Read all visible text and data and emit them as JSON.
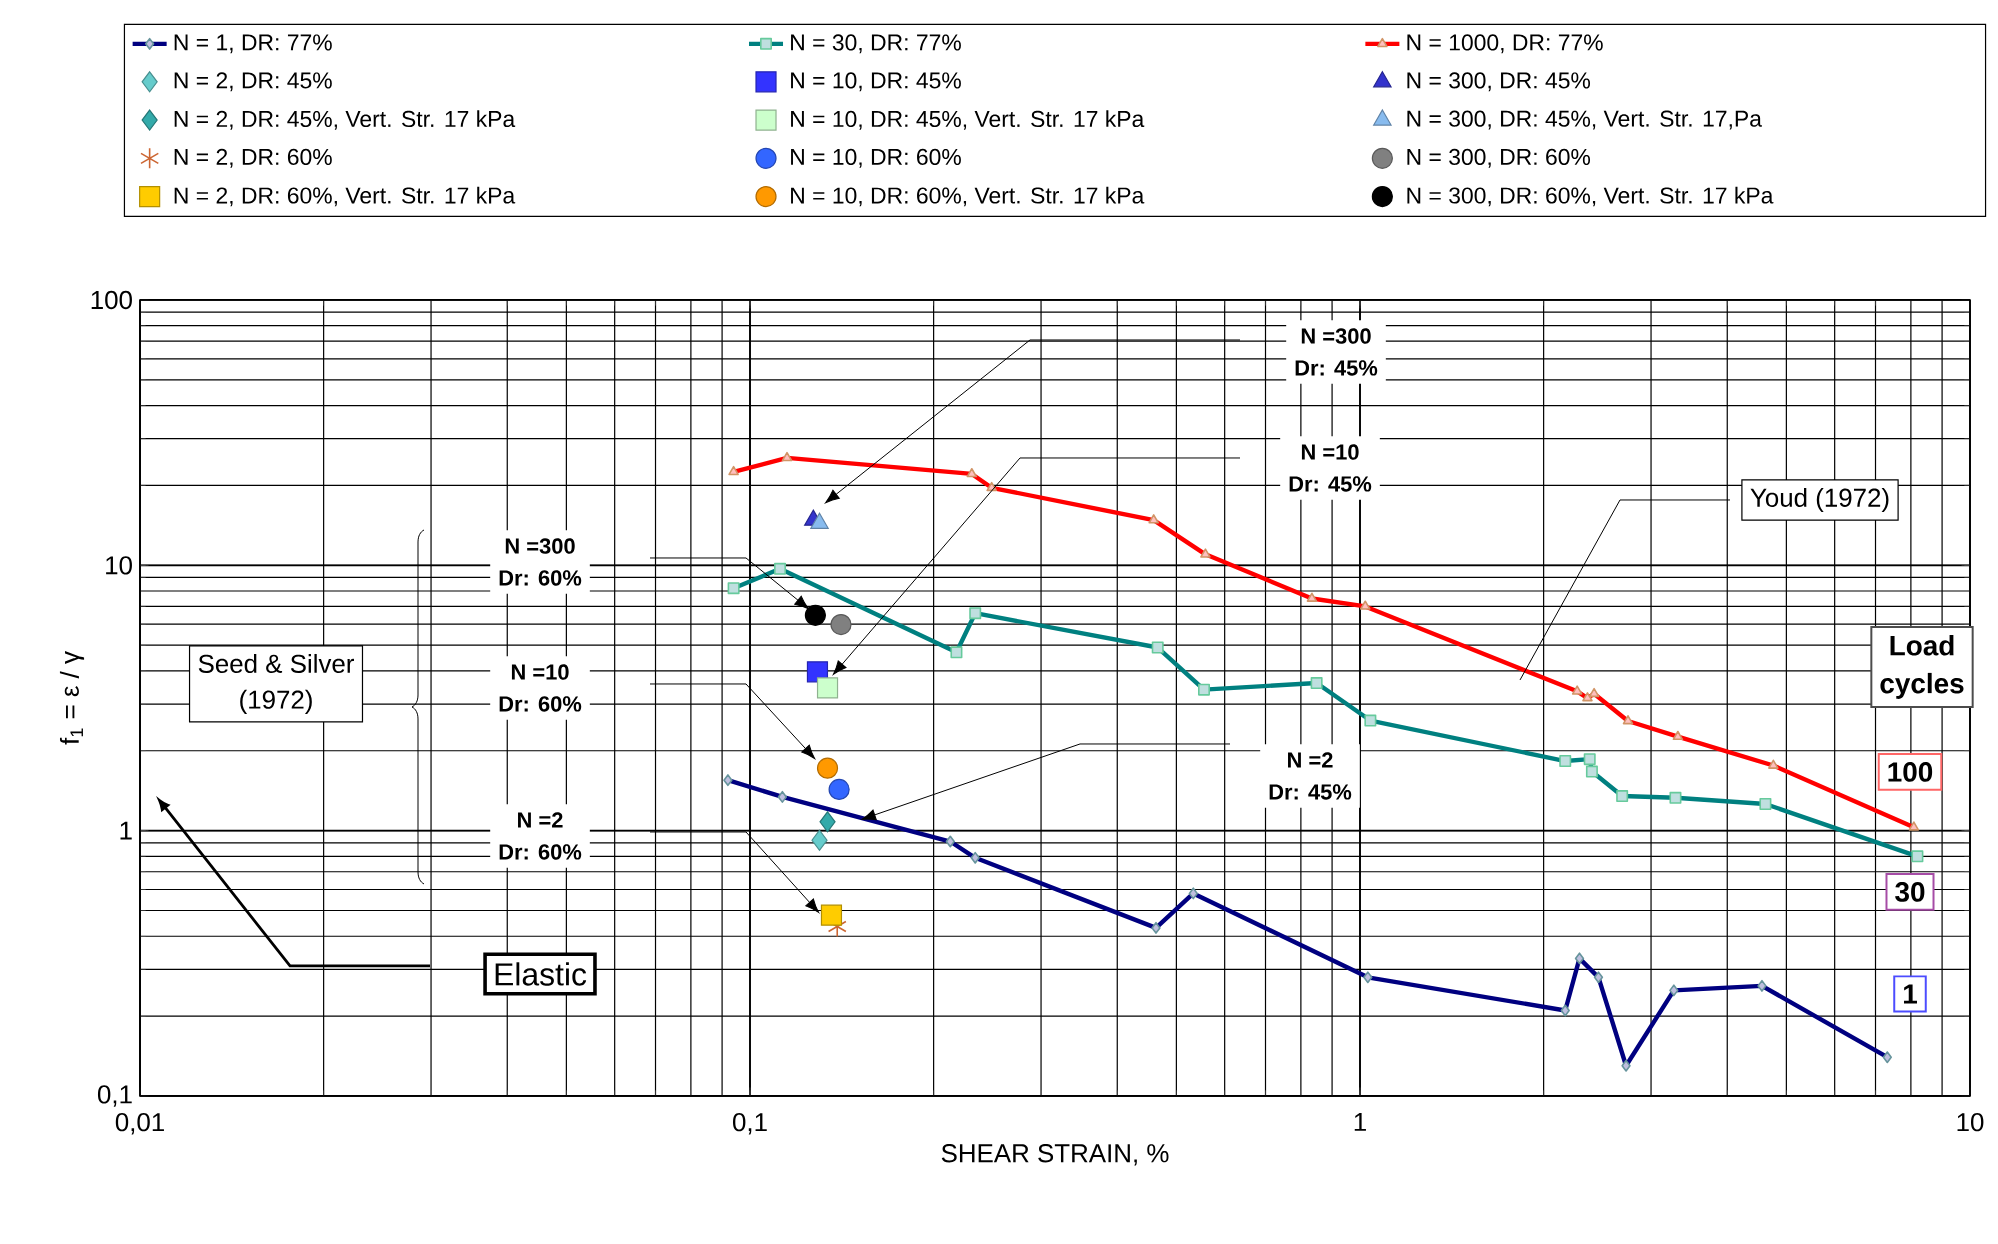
{
  "chart_data": {
    "type": "line",
    "xlabel": "SHEAR STRAIN, %",
    "ylabel": "f$_{1}$ = ε / γ",
    "log": "xy",
    "grid": true,
    "legend": "top",
    "xlim": [
      0.01,
      10
    ],
    "ylim": [
      0.1,
      100
    ],
    "xticks": [
      {
        "value": 0.01,
        "label": "0,01"
      },
      {
        "value": 0.1,
        "label": "0,1"
      },
      1,
      10
    ],
    "yticks": [
      {
        "value": 0.1,
        "label": "0,1"
      },
      1,
      10,
      100
    ],
    "series": [
      {
        "name": "N = 1, DR: 77%",
        "marker": "diamond",
        "color": "#000080",
        "x": [
          0.092,
          0.113,
          0.213,
          0.234,
          0.463,
          0.533,
          1.03,
          2.17,
          2.29,
          2.46,
          2.73,
          3.27,
          4.56,
          7.32
        ],
        "values": [
          1.55,
          1.34,
          0.91,
          0.79,
          0.43,
          0.58,
          0.28,
          0.21,
          0.33,
          0.28,
          0.13,
          0.25,
          0.26,
          0.14
        ]
      },
      {
        "name": "N = 30, DR: 77%",
        "marker": "square",
        "color": "#008080",
        "x": [
          0.094,
          0.112,
          0.218,
          0.234,
          0.466,
          0.555,
          0.849,
          1.04,
          2.17,
          2.38,
          2.4,
          2.69,
          3.29,
          4.62,
          8.2
        ],
        "values": [
          8.2,
          9.7,
          4.7,
          6.6,
          4.9,
          3.4,
          3.6,
          2.6,
          1.83,
          1.86,
          1.67,
          1.35,
          1.33,
          1.26,
          0.8
        ]
      },
      {
        "name": "N = 1000, DR: 77%",
        "marker": "triangle",
        "color": "#ff0000",
        "x": [
          0.094,
          0.115,
          0.231,
          0.249,
          0.459,
          0.558,
          0.834,
          1.02,
          2.27,
          2.36,
          2.42,
          2.75,
          3.32,
          4.76,
          8.09
        ],
        "values": [
          22.5,
          25.4,
          22.1,
          19.6,
          14.8,
          11.0,
          7.5,
          7.0,
          3.35,
          3.16,
          3.28,
          2.59,
          2.26,
          1.76,
          1.03
        ]
      },
      {
        "name": "N = 2, DR: 45%",
        "type": "scatter",
        "marker": "diamond",
        "color": "#66cccc",
        "x": [
          0.13
        ],
        "values": [
          0.92
        ]
      },
      {
        "name": "N = 10, DR: 45%",
        "type": "scatter",
        "marker": "square",
        "color": "#3333ff",
        "x": [
          0.129
        ],
        "values": [
          3.97
        ]
      },
      {
        "name": "N = 300, DR: 45%",
        "type": "scatter",
        "marker": "triangle",
        "color": "#3333cc",
        "x": [
          0.127
        ],
        "values": [
          14.8
        ]
      },
      {
        "name": "N = 2, DR: 45%, Vert. Str. 17 kPa",
        "type": "scatter",
        "marker": "diamond",
        "color": "#33aaaa",
        "x": [
          0.134
        ],
        "values": [
          1.08
        ]
      },
      {
        "name": "N = 10, DR: 45%, Vert. Str. 17 kPa",
        "type": "scatter",
        "marker": "square",
        "color": "#ccffcc",
        "x": [
          0.134
        ],
        "values": [
          3.45
        ]
      },
      {
        "name": "N = 300, DR: 45%, Vert. Str. 17,Pa",
        "type": "scatter",
        "marker": "triangle",
        "color": "#88bbee",
        "x": [
          0.13
        ],
        "values": [
          14.4
        ]
      },
      {
        "name": "N = 2, DR: 60%",
        "type": "scatter",
        "marker": "cross",
        "color": "#cc6633",
        "x": [
          0.139
        ],
        "values": [
          0.435
        ]
      },
      {
        "name": "N = 10, DR: 60%",
        "type": "scatter",
        "marker": "circle",
        "color": "#3366ff",
        "x": [
          0.14
        ],
        "values": [
          1.43
        ]
      },
      {
        "name": "N = 300, DR: 60%",
        "type": "scatter",
        "marker": "circle",
        "color": "#808080",
        "x": [
          0.141
        ],
        "values": [
          5.98
        ]
      },
      {
        "name": "N = 2, DR: 60%, Vert. Str. 17 kPa",
        "type": "scatter",
        "marker": "square",
        "color": "#ffcc00",
        "x": [
          0.136
        ],
        "values": [
          0.48
        ]
      },
      {
        "name": "N = 10, DR: 60%, Vert. Str. 17 kPa",
        "type": "scatter",
        "marker": "circle",
        "color": "#ff9900",
        "x": [
          0.134
        ],
        "values": [
          1.72
        ]
      },
      {
        "name": "N = 300, DR: 60%, Vert. Str. 17 kPa",
        "type": "scatter",
        "marker": "circle",
        "color": "#000000",
        "x": [
          0.128
        ],
        "values": [
          6.48
        ]
      }
    ],
    "annotations": [
      "N =300",
      "Dr: 45%",
      "N =10",
      "Dr: 45%",
      "N =2",
      "Dr: 45%",
      "N =300",
      "Dr: 60%",
      "N =10",
      "Dr: 60%",
      "N =2",
      "Dr: 60%",
      "Seed & Silver",
      "(1972)",
      "Youd (1972)",
      "Elastic",
      "Load",
      "cycles",
      "100",
      "30",
      "1"
    ]
  }
}
